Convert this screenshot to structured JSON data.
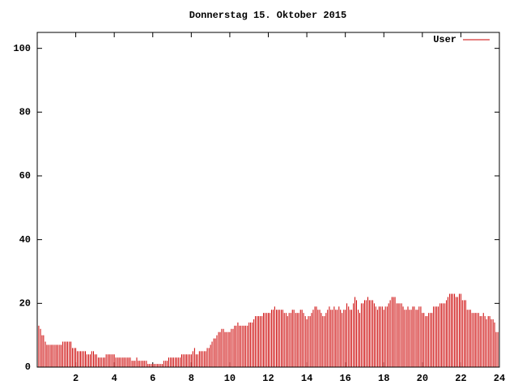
{
  "chart_data": {
    "type": "impulses",
    "title": "Donnerstag 15. Oktober 2015",
    "series": [
      {
        "name": "User",
        "color": "#cc0000",
        "x": [
          0,
          0.08,
          0.17,
          0.25,
          0.33,
          0.42,
          0.5,
          0.58,
          0.67,
          0.75,
          0.83,
          0.92,
          1,
          1.08,
          1.17,
          1.25,
          1.33,
          1.42,
          1.5,
          1.58,
          1.67,
          1.75,
          1.83,
          1.92,
          2,
          2.08,
          2.17,
          2.25,
          2.33,
          2.42,
          2.5,
          2.58,
          2.67,
          2.75,
          2.83,
          2.92,
          3,
          3.08,
          3.17,
          3.25,
          3.33,
          3.42,
          3.5,
          3.58,
          3.67,
          3.75,
          3.83,
          3.92,
          4,
          4.08,
          4.17,
          4.25,
          4.33,
          4.42,
          4.5,
          4.58,
          4.67,
          4.75,
          4.83,
          4.92,
          5,
          5.08,
          5.17,
          5.25,
          5.33,
          5.42,
          5.5,
          5.58,
          5.67,
          5.75,
          5.83,
          5.92,
          6,
          6.08,
          6.17,
          6.25,
          6.33,
          6.42,
          6.5,
          6.58,
          6.67,
          6.75,
          6.83,
          6.92,
          7,
          7.08,
          7.17,
          7.25,
          7.33,
          7.42,
          7.5,
          7.58,
          7.67,
          7.75,
          7.83,
          7.92,
          8,
          8.08,
          8.17,
          8.25,
          8.33,
          8.42,
          8.5,
          8.58,
          8.67,
          8.75,
          8.83,
          8.92,
          9,
          9.08,
          9.17,
          9.25,
          9.33,
          9.42,
          9.5,
          9.58,
          9.67,
          9.75,
          9.83,
          9.92,
          10,
          10.08,
          10.17,
          10.25,
          10.33,
          10.42,
          10.5,
          10.58,
          10.67,
          10.75,
          10.83,
          10.92,
          11,
          11.08,
          11.17,
          11.25,
          11.33,
          11.42,
          11.5,
          11.58,
          11.67,
          11.75,
          11.83,
          11.92,
          12,
          12.08,
          12.17,
          12.25,
          12.33,
          12.42,
          12.5,
          12.58,
          12.67,
          12.75,
          12.83,
          12.92,
          13,
          13.08,
          13.17,
          13.25,
          13.33,
          13.42,
          13.5,
          13.58,
          13.67,
          13.75,
          13.83,
          13.92,
          14,
          14.08,
          14.17,
          14.25,
          14.33,
          14.42,
          14.5,
          14.58,
          14.67,
          14.75,
          14.83,
          14.92,
          15,
          15.08,
          15.17,
          15.25,
          15.33,
          15.42,
          15.5,
          15.58,
          15.67,
          15.75,
          15.83,
          15.92,
          16,
          16.08,
          16.17,
          16.25,
          16.33,
          16.42,
          16.5,
          16.58,
          16.67,
          16.75,
          16.83,
          16.92,
          17,
          17.08,
          17.17,
          17.25,
          17.33,
          17.42,
          17.5,
          17.58,
          17.67,
          17.75,
          17.83,
          17.92,
          18,
          18.08,
          18.17,
          18.25,
          18.33,
          18.42,
          18.5,
          18.58,
          18.67,
          18.75,
          18.83,
          18.92,
          19,
          19.08,
          19.17,
          19.25,
          19.33,
          19.42,
          19.5,
          19.58,
          19.67,
          19.75,
          19.83,
          19.92,
          20,
          20.08,
          20.17,
          20.25,
          20.33,
          20.42,
          20.5,
          20.58,
          20.67,
          20.75,
          20.83,
          20.92,
          21,
          21.08,
          21.17,
          21.25,
          21.33,
          21.42,
          21.5,
          21.58,
          21.67,
          21.75,
          21.83,
          21.92,
          22,
          22.08,
          22.17,
          22.25,
          22.33,
          22.42,
          22.5,
          22.58,
          22.67,
          22.75,
          22.83,
          22.92,
          23,
          23.08,
          23.17,
          23.25,
          23.33,
          23.42,
          23.5,
          23.58,
          23.67,
          23.75,
          23.83,
          23.92
        ],
        "values": [
          13,
          13,
          12,
          10,
          10,
          8,
          7,
          7,
          7,
          7,
          7,
          7,
          7,
          7,
          7,
          7,
          8,
          8,
          8,
          8,
          8,
          8,
          6,
          6,
          6,
          5,
          5,
          5,
          5,
          5,
          5,
          4,
          4,
          4,
          5,
          5,
          4,
          4,
          3,
          3,
          3,
          3,
          3,
          4,
          4,
          4,
          4,
          4,
          4,
          3,
          3,
          3,
          3,
          3,
          3,
          3,
          3,
          3,
          3,
          2,
          2,
          2,
          3,
          2,
          2,
          2,
          2,
          2,
          2,
          1,
          1,
          1,
          1,
          1,
          1,
          1,
          1,
          1,
          1,
          2,
          2,
          2,
          3,
          3,
          3,
          3,
          3,
          3,
          3,
          3,
          4,
          4,
          4,
          4,
          4,
          4,
          4,
          5,
          6,
          4,
          4,
          5,
          5,
          5,
          5,
          5,
          6,
          6,
          7,
          8,
          9,
          9,
          10,
          11,
          11,
          12,
          12,
          11,
          11,
          11,
          11,
          12,
          12,
          13,
          13,
          14,
          13,
          13,
          13,
          13,
          13,
          13,
          14,
          14,
          14,
          15,
          16,
          16,
          16,
          16,
          16,
          17,
          17,
          17,
          17,
          17,
          18,
          18,
          19,
          18,
          18,
          18,
          18,
          18,
          17,
          17,
          16,
          17,
          17,
          18,
          18,
          17,
          17,
          17,
          18,
          18,
          17,
          16,
          15,
          16,
          16,
          17,
          18,
          19,
          19,
          18,
          18,
          17,
          16,
          16,
          17,
          18,
          19,
          18,
          18,
          19,
          18,
          18,
          19,
          18,
          17,
          18,
          18,
          20,
          19,
          18,
          18,
          20,
          22,
          21,
          18,
          17,
          20,
          20,
          21,
          21,
          22,
          21,
          21,
          21,
          20,
          19,
          18,
          19,
          19,
          19,
          18,
          19,
          19,
          20,
          21,
          22,
          22,
          22,
          20,
          20,
          20,
          20,
          19,
          18,
          18,
          19,
          18,
          18,
          19,
          19,
          18,
          18,
          19,
          19,
          17,
          17,
          16,
          16,
          17,
          17,
          17,
          19,
          19,
          19,
          19,
          20,
          20,
          20,
          20,
          21,
          22,
          23,
          23,
          23,
          23,
          22,
          22,
          23,
          23,
          21,
          21,
          21,
          18,
          18,
          18,
          17,
          17,
          17,
          17,
          17,
          16,
          16,
          17,
          16,
          15,
          16,
          16,
          15,
          15,
          14,
          11,
          11
        ]
      }
    ],
    "xlim": [
      0,
      24
    ],
    "xticks": [
      2,
      4,
      6,
      8,
      10,
      12,
      14,
      16,
      18,
      20,
      22,
      24
    ],
    "ylim": [
      0,
      105
    ],
    "yticks": [
      0,
      20,
      40,
      60,
      80,
      100
    ],
    "grid": false,
    "legend": "top-right"
  }
}
